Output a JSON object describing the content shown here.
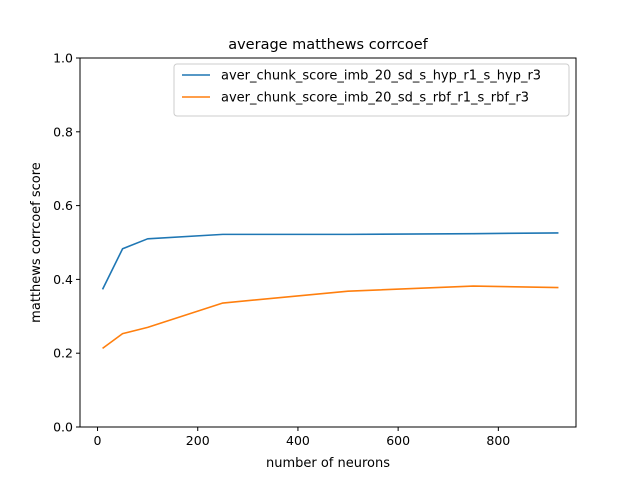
{
  "chart_data": {
    "type": "line",
    "title": "average matthews corrcoef",
    "xlabel": "number of neurons",
    "ylabel": "matthews corrcoef score",
    "xlim": [
      -35,
      955
    ],
    "ylim": [
      0.0,
      1.0
    ],
    "xticks": [
      0,
      200,
      400,
      600,
      800
    ],
    "xtick_labels": [
      "0",
      "200",
      "400",
      "600",
      "800"
    ],
    "yticks": [
      0.0,
      0.2,
      0.4,
      0.6,
      0.8,
      1.0
    ],
    "ytick_labels": [
      "0.0",
      "0.2",
      "0.4",
      "0.6",
      "0.8",
      "1.0"
    ],
    "grid": false,
    "legend_position": "top-right",
    "series": [
      {
        "name": "aver_chunk_score_imb_20_sd_s_hyp_r1_s_hyp_r3",
        "color": "#1f77b4",
        "x": [
          10,
          50,
          100,
          250,
          500,
          750,
          920
        ],
        "y": [
          0.373,
          0.483,
          0.51,
          0.522,
          0.522,
          0.524,
          0.526
        ]
      },
      {
        "name": "aver_chunk_score_imb_20_sd_s_rbf_r1_s_rbf_r3",
        "color": "#ff7f0e",
        "x": [
          10,
          50,
          100,
          250,
          500,
          750,
          920
        ],
        "y": [
          0.213,
          0.253,
          0.27,
          0.336,
          0.368,
          0.382,
          0.378
        ]
      }
    ]
  }
}
